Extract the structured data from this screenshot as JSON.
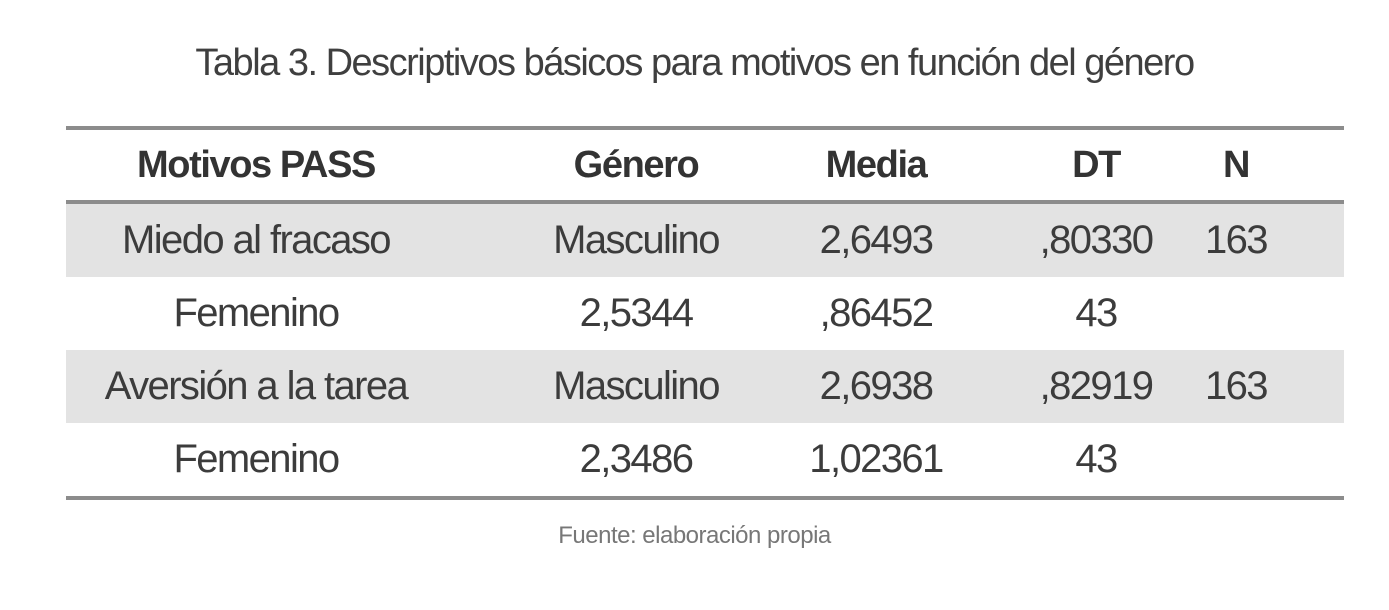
{
  "table": {
    "caption": "Tabla 3. Descriptivos básicos para motivos en función del género",
    "headers": [
      "Motivos PASS",
      "Género",
      "Media",
      "DT",
      "N"
    ],
    "rows": [
      [
        "Miedo al fracaso",
        "Masculino",
        "2,6493",
        ",80330",
        "163"
      ],
      [
        "Femenino",
        "2,5344",
        ",86452",
        "43",
        ""
      ],
      [
        "Aversión a la tarea",
        "Masculino",
        "2,6938",
        ",82919",
        "163"
      ],
      [
        "Femenino",
        "2,3486",
        "1,02361",
        "43",
        ""
      ]
    ],
    "footnote": "Fuente: elaboración propia"
  },
  "colors": {
    "shaded_row": "#e3e3e3",
    "rule": "#8c8c8c",
    "text": "#3c3c3c"
  }
}
